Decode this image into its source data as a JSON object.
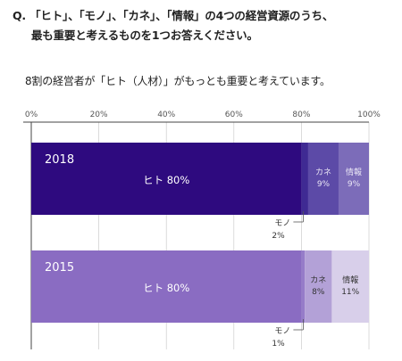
{
  "question": {
    "line1": "Q. 「ヒト」、「モノ」、「カネ」、「情報」の4つの経営資源のうち、",
    "line2": "最も重要と考えるものを1つお答えください。"
  },
  "subtitle": "8割の経営者が「ヒト（人材）」がもっとも重要と考えています。",
  "colors": {
    "2018": [
      "#2e0a7f",
      "#3f2a93",
      "#5c4aa7",
      "#7c6cb9"
    ],
    "2015": [
      "#8a6cc2",
      "#967cc9",
      "#b3a1d7",
      "#d8cfea"
    ],
    "axis": "#444444",
    "grid": "#cccccc",
    "guide": "#555555"
  },
  "chart_data": {
    "type": "bar",
    "orientation": "horizontal-stacked",
    "xlim": [
      0,
      100
    ],
    "ticks": [
      "0%",
      "20%",
      "40%",
      "60%",
      "80%",
      "100%"
    ],
    "grid": true,
    "bars": [
      {
        "year": "2018",
        "segments": [
          {
            "label": "ヒト",
            "value": 80,
            "text": "ヒト 80%"
          },
          {
            "label": "モノ",
            "value": 2,
            "text": "モノ",
            "value_text": "2%"
          },
          {
            "label": "カネ",
            "value": 9,
            "text": "カネ",
            "value_text": "9%"
          },
          {
            "label": "情報",
            "value": 9,
            "text": "情報",
            "value_text": "9%"
          }
        ]
      },
      {
        "year": "2015",
        "segments": [
          {
            "label": "ヒト",
            "value": 80,
            "text": "ヒト 80%"
          },
          {
            "label": "モノ",
            "value": 1,
            "text": "モノ",
            "value_text": "1%"
          },
          {
            "label": "カネ",
            "value": 8,
            "text": "カネ",
            "value_text": "8%"
          },
          {
            "label": "情報",
            "value": 11,
            "text": "情報",
            "value_text": "11%"
          }
        ]
      }
    ]
  }
}
